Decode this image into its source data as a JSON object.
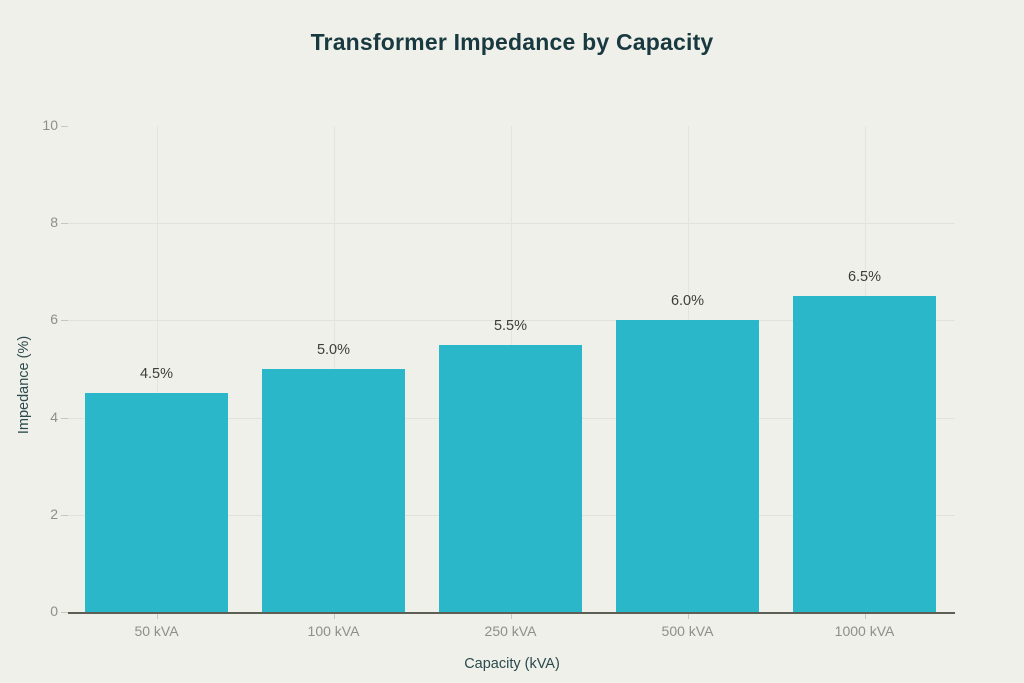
{
  "title": "Transformer Impedance by Capacity",
  "chart_data": {
    "type": "bar",
    "title": "Transformer Impedance by Capacity",
    "categories": [
      "50 kVA",
      "100 kVA",
      "250 kVA",
      "500 kVA",
      "1000 kVA"
    ],
    "values": [
      4.5,
      5.0,
      5.5,
      6.0,
      6.5
    ],
    "data_labels": [
      "4.5%",
      "5.0%",
      "5.5%",
      "6.0%",
      "6.5%"
    ],
    "xlabel": "Capacity (kVA)",
    "ylabel": "Impedance (%)",
    "ylim": [
      0,
      10
    ],
    "yticks": [
      0,
      2,
      4,
      6,
      8,
      10
    ],
    "grid_yticks": [
      2,
      4,
      6,
      8
    ],
    "grid": "on",
    "legend": "none"
  },
  "colors": {
    "background": "#F0F0EA",
    "bar": "#2AB7C9",
    "title_text": "#17393F",
    "axis_title_text": "#2B4A4E",
    "tick_label": "#8F8F89",
    "data_label": "#3E3E39",
    "gridline": "#E2E2DC",
    "axis_line": "#5E5E55",
    "tick_mark": "#C7C7C0"
  }
}
